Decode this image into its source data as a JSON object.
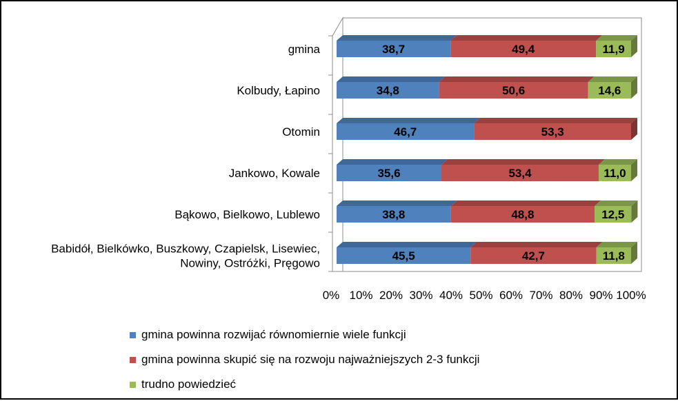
{
  "chart_data": {
    "type": "bar",
    "orientation": "horizontal",
    "stacked": "percent",
    "categories": [
      [
        "gmina"
      ],
      [
        "Kolbudy, Łapino"
      ],
      [
        "Otomin"
      ],
      [
        "Jankowo, Kowale"
      ],
      [
        "Bąkowo, Bielkowo, Lublewo"
      ],
      [
        "Babidół, Bielkówko, Buszkowy, Czapielsk, Lisewiec,",
        "Nowiny, Ostróżki, Pręgowo"
      ]
    ],
    "series": [
      {
        "name": "gmina powinna rozwijać równomiernie wiele funkcji",
        "color": "#4F81BD",
        "values": [
          38.7,
          34.8,
          46.7,
          35.6,
          38.8,
          45.5
        ],
        "labels": [
          "38,7",
          "34,8",
          "46,7",
          "35,6",
          "38,8",
          "45,5"
        ]
      },
      {
        "name": "gmina powinna skupić się na rozwoju najważniejszych 2-3 funkcji",
        "color": "#C0504D",
        "values": [
          49.4,
          50.6,
          53.3,
          53.4,
          48.8,
          42.7
        ],
        "labels": [
          "49,4",
          "50,6",
          "53,3",
          "53,4",
          "48,8",
          "42,7"
        ]
      },
      {
        "name": "trudno powiedzieć",
        "color": "#9BBB59",
        "values": [
          11.9,
          14.6,
          0,
          11.0,
          12.5,
          11.8
        ],
        "labels": [
          "11,9",
          "14,6",
          "",
          "11,0",
          "12,5",
          "11,8"
        ]
      }
    ],
    "x_ticks": [
      "0%",
      "10%",
      "20%",
      "30%",
      "40%",
      "50%",
      "60%",
      "70%",
      "80%",
      "90%",
      "100%"
    ],
    "xlim": [
      0,
      100
    ],
    "grid": false,
    "three_d": true,
    "legend": "bottom",
    "title": "",
    "xlabel": "",
    "ylabel": ""
  }
}
